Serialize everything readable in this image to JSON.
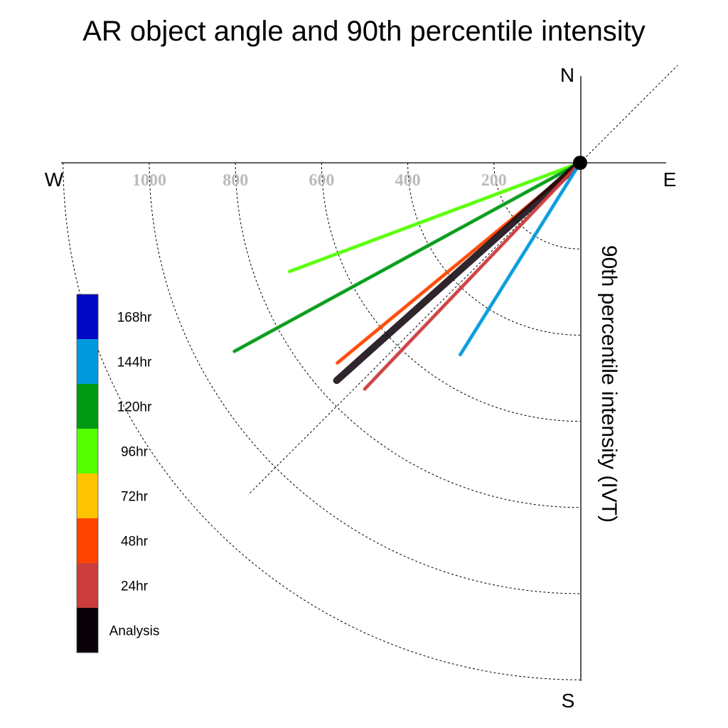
{
  "chart_data": {
    "type": "polar-vector",
    "title": "AR object angle and 90th percentile intensity",
    "ylabel": "90th percentile intensity (IVT)",
    "compass": {
      "north": "N",
      "south": "S",
      "east": "E",
      "west": "W"
    },
    "rings": [
      200,
      400,
      600,
      800,
      1000,
      1200
    ],
    "ring_labels": [
      "1000",
      "800",
      "600",
      "400",
      "200"
    ],
    "ring_label_values": [
      1000,
      800,
      600,
      400,
      200
    ],
    "reference_angles_deg": [
      45,
      225
    ],
    "series": [
      {
        "name": "96hr",
        "color": "#55ff00",
        "angle_deg": 200.5,
        "intensity": 720
      },
      {
        "name": "120hr",
        "color": "#009a14",
        "angle_deg": 208.6,
        "intensity": 914
      },
      {
        "name": "48hr",
        "color": "#ff4400",
        "angle_deg": 219.5,
        "intensity": 730
      },
      {
        "name": "Analysis",
        "color": "#0a0008",
        "angle_deg": 221.8,
        "intensity": 758
      },
      {
        "name": "24hr",
        "color": "#cc3d3d",
        "angle_deg": 226.4,
        "intensity": 725
      },
      {
        "name": "144hr",
        "color": "#0099dd",
        "angle_deg": 238.0,
        "intensity": 525
      }
    ],
    "legend": [
      {
        "label": "168hr",
        "color": "#0008c5"
      },
      {
        "label": "144hr",
        "color": "#0099dd"
      },
      {
        "label": "120hr",
        "color": "#009a14"
      },
      {
        "label": "96hr",
        "color": "#55ff00"
      },
      {
        "label": "72hr",
        "color": "#ffc400"
      },
      {
        "label": "48hr",
        "color": "#ff4400"
      },
      {
        "label": "24hr",
        "color": "#cc3d3d"
      },
      {
        "label": "Analysis",
        "color": "#0a0008"
      }
    ]
  }
}
